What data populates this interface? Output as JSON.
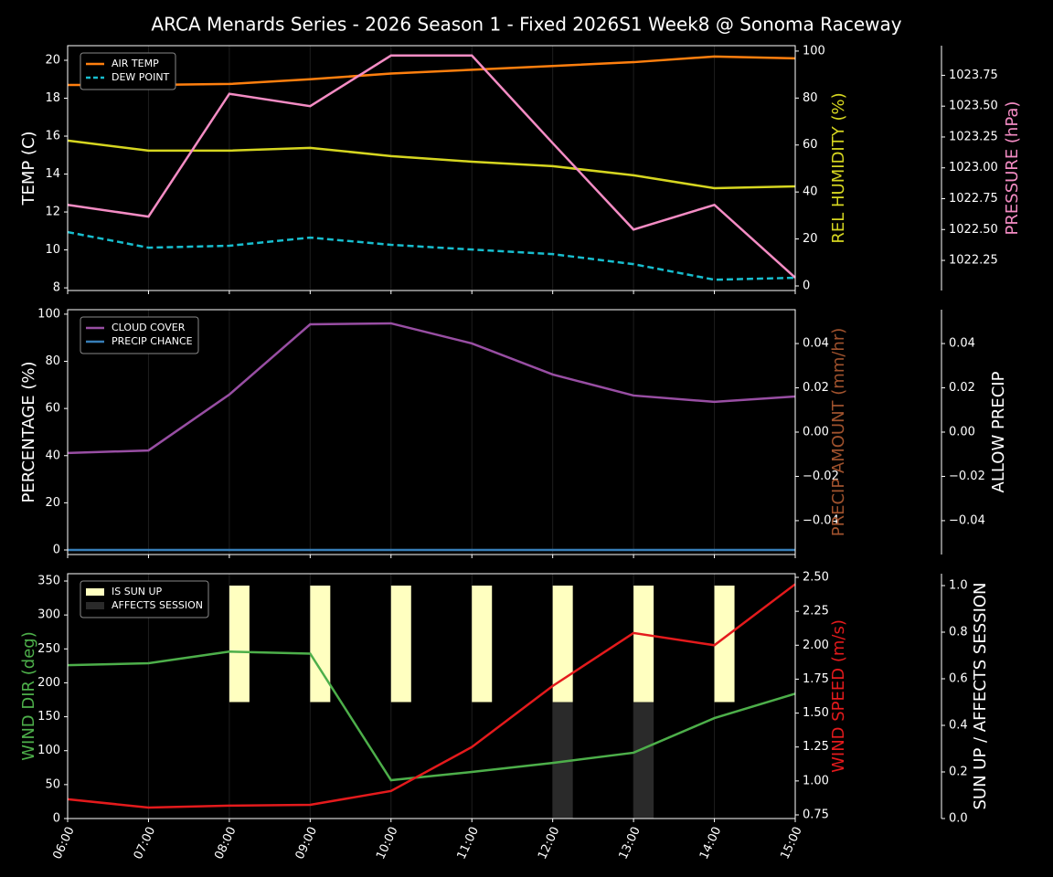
{
  "chart_data": [
    {
      "type": "line",
      "title": "ARCA Menards Series - 2026 Season 1 - Fixed 2026S1 Week8 @ Sonoma Raceway",
      "x": [
        "06:00",
        "07:00",
        "08:00",
        "09:00",
        "10:00",
        "11:00",
        "12:00",
        "13:00",
        "14:00",
        "15:00"
      ],
      "ylabel": "TEMP (C)",
      "ylabel_color": "#ffffff",
      "ylim": [
        7.86,
        20.77
      ],
      "yticks": [
        8,
        10,
        12,
        14,
        16,
        18,
        20
      ],
      "y2label": "REL HUMIDITY (%)",
      "y2label_color": "#d6d620",
      "y2lim": [
        -1.95,
        102.3
      ],
      "y2ticks": [
        0,
        20,
        40,
        60,
        80,
        100
      ],
      "y3label": "PRESSURE (hPa)",
      "y3label_color": "#f48cc4",
      "y3lim": [
        1022.006,
        1023.99
      ],
      "y3ticks": [
        1022.25,
        {
          "value": 1022.5,
          "label": "1022.50"
        },
        1022.75,
        {
          "value": 1023,
          "label": "1023.00"
        },
        1023.25,
        {
          "value": 1023.5,
          "label": "1023.50"
        },
        1023.75
      ],
      "legend": "upper left",
      "grid": true,
      "series": [
        {
          "name": "AIR TEMP",
          "color": "#ff7f0e",
          "axis": "y",
          "values": [
            18.7,
            18.7,
            18.75,
            19.0,
            19.3,
            19.5,
            19.7,
            19.9,
            20.2,
            20.1
          ]
        },
        {
          "name": "DEW POINT",
          "color": "#17becf",
          "axis": "y",
          "dashed": true,
          "values": [
            10.94,
            10.12,
            10.22,
            10.65,
            10.27,
            10.02,
            9.78,
            9.25,
            8.43,
            8.53
          ]
        },
        {
          "color": "#d6d620",
          "axis": "y2",
          "values": [
            61.9,
            57.6,
            57.6,
            58.8,
            55.3,
            52.9,
            51.0,
            47.1,
            41.6,
            42.4
          ]
        },
        {
          "color": "#f48cc4",
          "axis": "y3",
          "values": [
            1022.7,
            1022.605,
            1023.6,
            1023.5,
            1023.91,
            1023.91,
            1023.2,
            1022.5,
            1022.7,
            1022.11
          ]
        }
      ]
    },
    {
      "type": "line",
      "x": [
        "06:00",
        "07:00",
        "08:00",
        "09:00",
        "10:00",
        "11:00",
        "12:00",
        "13:00",
        "14:00",
        "15:00"
      ],
      "ylabel": "PERCENTAGE (%)",
      "ylabel_color": "#ffffff",
      "ylim": [
        -1.94,
        101.9
      ],
      "yticks": [
        0,
        20,
        40,
        60,
        80,
        100
      ],
      "y2label": "PRECIP AMOUNT (mm/hr)",
      "y2label_color": "#a0522d",
      "y2lim": [
        -0.0553,
        0.0553
      ],
      "y2ticks": [
        {
          "value": -0.04,
          "label": "−0.04"
        },
        {
          "value": -0.02,
          "label": "−0.02"
        },
        {
          "value": 0,
          "label": "0.00"
        },
        0.02,
        0.04
      ],
      "y3label": "ALLOW PRECIP",
      "y3label_color": "#ffffff",
      "y3lim": [
        -0.0553,
        0.0553
      ],
      "y3ticks": [
        {
          "value": -0.04,
          "label": "−0.04"
        },
        {
          "value": -0.02,
          "label": "−0.02"
        },
        {
          "value": 0,
          "label": "0.00"
        },
        0.02,
        0.04
      ],
      "legend": "upper left",
      "grid": true,
      "series": [
        {
          "name": "CLOUD COVER",
          "color": "#984ea3",
          "axis": "y",
          "values": [
            41.1,
            42.2,
            65.9,
            95.7,
            96.1,
            87.6,
            74.4,
            65.5,
            62.8,
            65.1
          ]
        },
        {
          "name": "PRECIP CHANCE",
          "color": "#377eb8",
          "axis": "y",
          "values": [
            0,
            0,
            0,
            0,
            0,
            0,
            0,
            0,
            0,
            0
          ]
        }
      ]
    },
    {
      "type": "line",
      "x": [
        "06:00",
        "07:00",
        "08:00",
        "09:00",
        "10:00",
        "11:00",
        "12:00",
        "13:00",
        "14:00",
        "15:00"
      ],
      "ylabel": "WIND DIR (deg)",
      "ylabel_color": "#4daf4a",
      "ylim": [
        0,
        360.8
      ],
      "yticks": [
        0,
        50,
        100,
        150,
        200,
        250,
        300,
        350
      ],
      "y2label": "WIND SPEED (m/s)",
      "y2label_color": "#e41a1c",
      "y2lim": [
        0.723,
        2.527
      ],
      "y2ticks": [
        0.75,
        {
          "value": 1,
          "label": "1.00"
        },
        1.25,
        {
          "value": 1.5,
          "label": "1.50"
        },
        1.75,
        {
          "value": 2,
          "label": "2.00"
        },
        2.25,
        {
          "value": 2.5,
          "label": "2.50"
        }
      ],
      "y3label": "SUN UP / AFFECTS SESSION",
      "y3label_color": "#ffffff",
      "y3lim": [
        0,
        1.051
      ],
      "y3ticks": [
        {
          "value": 0,
          "label": "0.0"
        },
        0.2,
        0.4,
        0.6,
        0.8,
        {
          "value": 1,
          "label": "1.0"
        }
      ],
      "legend": "upper left",
      "grid": true,
      "show_x_labels": true,
      "series": [
        {
          "name": "IS SUN UP",
          "color": "#ffffc0",
          "axis": "y3",
          "type": "bar",
          "base": 0.5,
          "values": [
            0,
            0,
            0.5,
            0.5,
            0.5,
            0.5,
            0.5,
            0.5,
            0.5,
            0
          ]
        },
        {
          "name": "AFFECTS SESSION",
          "color": "#2a2a2a",
          "axis": "y3",
          "type": "bar",
          "values": [
            0,
            0,
            0,
            0,
            0,
            0,
            0.5,
            0.5,
            0,
            0
          ]
        },
        {
          "color": "#4daf4a",
          "axis": "y",
          "values": [
            226,
            228.8,
            246,
            243,
            56.5,
            68.6,
            82,
            97,
            148,
            184
          ]
        },
        {
          "color": "#e41a1c",
          "axis": "y2",
          "values": [
            0.865,
            0.804,
            0.818,
            0.824,
            0.926,
            1.25,
            1.7,
            2.09,
            2.0,
            2.45
          ]
        }
      ]
    }
  ]
}
